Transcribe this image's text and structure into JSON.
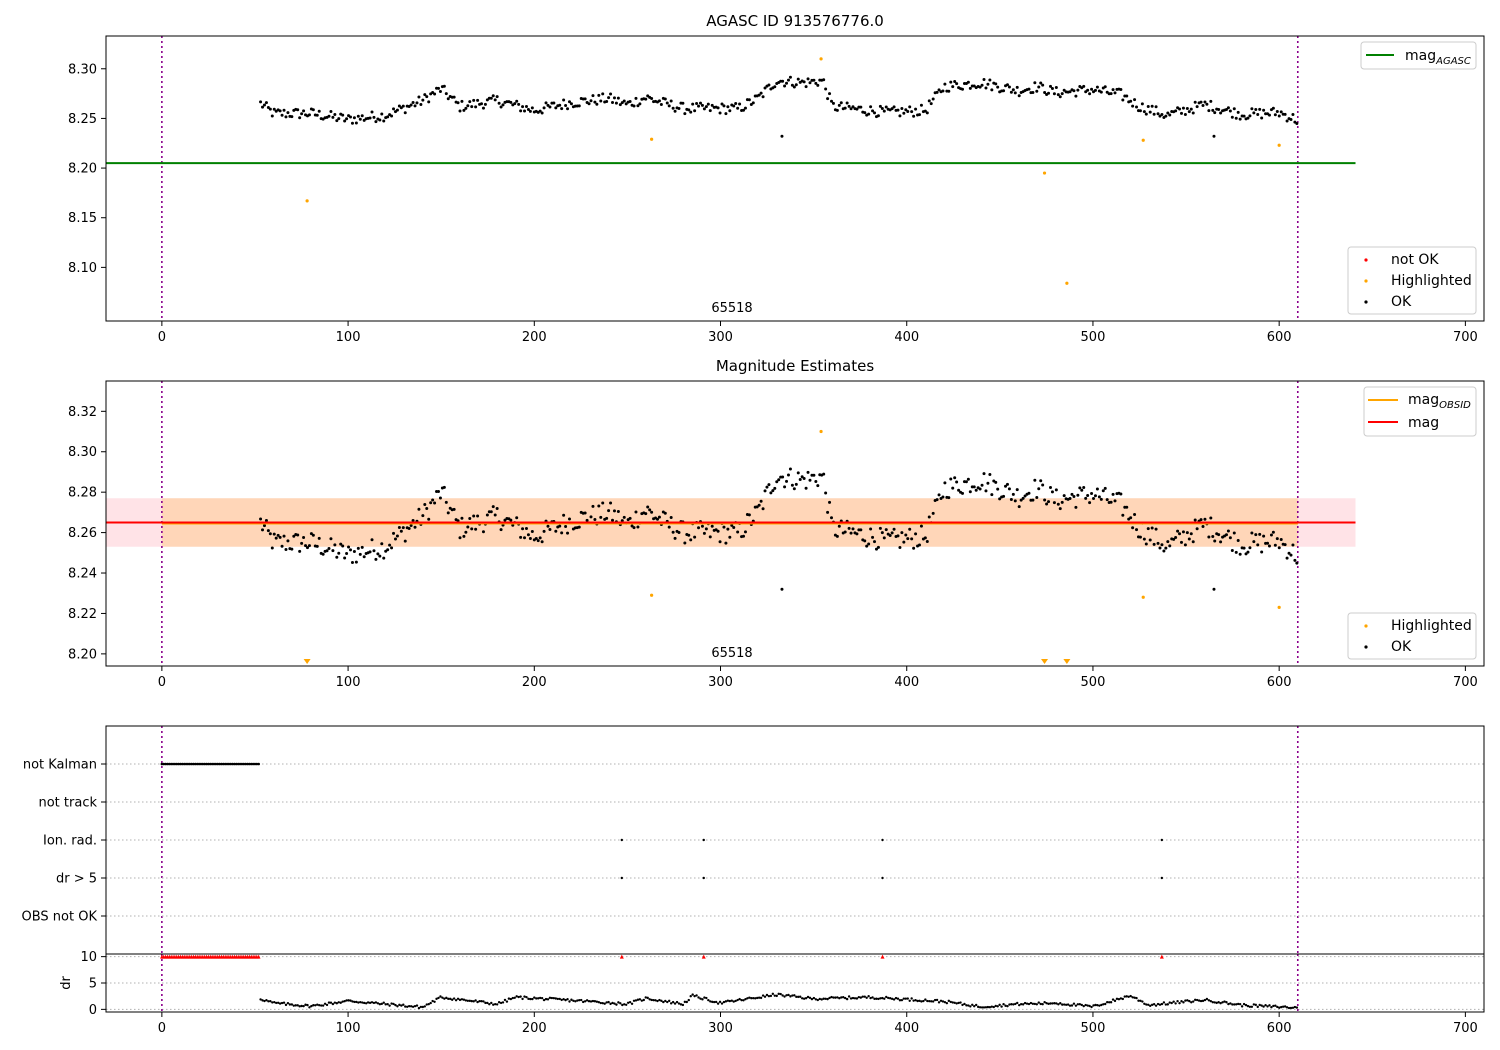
{
  "chart_data": [
    {
      "type": "scatter",
      "title": "AGASC ID 913576776.0",
      "xlim": [
        -30,
        710
      ],
      "ylim": [
        8.046,
        8.333
      ],
      "xticks": [
        0,
        100,
        200,
        300,
        400,
        500,
        600,
        700
      ],
      "yticks": [
        8.1,
        8.15,
        8.2,
        8.25,
        8.3
      ],
      "vlines": [
        0,
        610
      ],
      "annotation": {
        "text": "65518",
        "x": 305,
        "y": 8.061
      },
      "hline": {
        "name": "mag_AGASC",
        "y": 8.205,
        "x_range": [
          -30,
          641
        ],
        "color": "#008000"
      },
      "series": [
        {
          "name": "not OK",
          "color": "#ff0000",
          "points": []
        },
        {
          "name": "Highlighted",
          "color": "#ffa500",
          "points": [
            [
              78,
              8.167
            ],
            [
              263,
              8.229
            ],
            [
              354,
              8.31
            ],
            [
              474,
              8.195
            ],
            [
              486,
              8.084
            ],
            [
              527,
              8.228
            ],
            [
              600,
              8.223
            ]
          ]
        },
        {
          "name": "OK",
          "color": "#000000",
          "x_range": [
            53,
            610
          ],
          "profile": [
            [
              53,
              8.265
            ],
            [
              60,
              8.255
            ],
            [
              80,
              8.255
            ],
            [
              100,
              8.249
            ],
            [
              120,
              8.253
            ],
            [
              140,
              8.268
            ],
            [
              150,
              8.28
            ],
            [
              160,
              8.262
            ],
            [
              180,
              8.268
            ],
            [
              200,
              8.258
            ],
            [
              220,
              8.266
            ],
            [
              240,
              8.27
            ],
            [
              250,
              8.264
            ],
            [
              260,
              8.271
            ],
            [
              270,
              8.265
            ],
            [
              280,
              8.26
            ],
            [
              300,
              8.26
            ],
            [
              310,
              8.26
            ],
            [
              320,
              8.27
            ],
            [
              330,
              8.288
            ],
            [
              345,
              8.286
            ],
            [
              355,
              8.288
            ],
            [
              360,
              8.262
            ],
            [
              390,
              8.256
            ],
            [
              410,
              8.258
            ],
            [
              420,
              8.282
            ],
            [
              440,
              8.286
            ],
            [
              460,
              8.278
            ],
            [
              470,
              8.282
            ],
            [
              480,
              8.276
            ],
            [
              500,
              8.279
            ],
            [
              515,
              8.274
            ],
            [
              525,
              8.262
            ],
            [
              540,
              8.253
            ],
            [
              560,
              8.264
            ],
            [
              580,
              8.254
            ],
            [
              600,
              8.256
            ],
            [
              610,
              8.248
            ]
          ],
          "outliers": [
            [
              333,
              8.232
            ],
            [
              565,
              8.232
            ]
          ]
        }
      ],
      "legend": [
        "mag_AGASC",
        "not OK",
        "Highlighted",
        "OK"
      ]
    },
    {
      "type": "scatter",
      "title": "Magnitude Estimates",
      "xlim": [
        -30,
        710
      ],
      "ylim": [
        8.194,
        8.335
      ],
      "xticks": [
        0,
        100,
        200,
        300,
        400,
        500,
        600,
        700
      ],
      "yticks": [
        8.2,
        8.22,
        8.24,
        8.26,
        8.28,
        8.3,
        8.32
      ],
      "vlines": [
        0,
        610
      ],
      "annotation": {
        "text": "65518",
        "x": 305,
        "y": 8.2
      },
      "hlines": [
        {
          "name": "mag_OBSID",
          "y": 8.2645,
          "x_range": [
            0,
            610
          ],
          "color": "#ffa500"
        },
        {
          "name": "mag",
          "y": 8.265,
          "x_range": [
            -30,
            641
          ],
          "color": "#ff0000"
        }
      ],
      "bands": [
        {
          "y": [
            8.253,
            8.277
          ],
          "x_range": [
            -30,
            641
          ],
          "color": "#ff9aaa",
          "opacity": 0.28
        },
        {
          "y": [
            8.253,
            8.277
          ],
          "x_range": [
            0,
            610
          ],
          "color": "#ffa500",
          "opacity": 0.2
        }
      ],
      "series": [
        {
          "name": "Highlighted",
          "color": "#ffa500",
          "points": [
            [
              263,
              8.229
            ],
            [
              354,
              8.31
            ],
            [
              527,
              8.228
            ],
            [
              600,
              8.223
            ]
          ],
          "below_range": [
            78,
            474,
            486
          ]
        },
        {
          "name": "OK",
          "color": "#000000"
        }
      ],
      "legend": [
        "mag_OBSID",
        "mag",
        "Highlighted",
        "OK"
      ]
    },
    {
      "type": "scatter",
      "xlim": [
        -30,
        710
      ],
      "xticks": [
        0,
        100,
        200,
        300,
        400,
        500,
        600,
        700
      ],
      "vlines": [
        0,
        610
      ],
      "flag_rows": [
        "not Kalman",
        "not track",
        "Ion. rad.",
        "dr > 5",
        "OBS not OK"
      ],
      "flags": {
        "not Kalman": {
          "x_range": [
            0,
            52
          ]
        },
        "not track": {
          "x": []
        },
        "Ion. rad.": {
          "x": [
            247,
            291,
            387,
            537
          ]
        },
        "dr > 5": {
          "x": [
            247,
            291,
            387,
            537
          ]
        },
        "OBS not OK": {
          "x": []
        }
      }
    },
    {
      "type": "scatter",
      "xlim": [
        -30,
        710
      ],
      "ylim": [
        -0.5,
        10.5
      ],
      "ylabel": "dr",
      "xticks": [
        0,
        100,
        200,
        300,
        400,
        500,
        600,
        700
      ],
      "yticks": [
        0,
        5,
        10
      ],
      "vlines": [
        0,
        610
      ],
      "capped": {
        "y": 10,
        "color": "#ff0000",
        "x_range": [
          0,
          52
        ],
        "x": [
          247,
          291,
          387,
          537
        ]
      },
      "profile": [
        [
          53,
          2.0
        ],
        [
          60,
          1.2
        ],
        [
          80,
          0.6
        ],
        [
          100,
          1.6
        ],
        [
          120,
          1.0
        ],
        [
          140,
          0.4
        ],
        [
          150,
          2.3
        ],
        [
          180,
          1.0
        ],
        [
          190,
          2.3
        ],
        [
          230,
          1.5
        ],
        [
          250,
          1.0
        ],
        [
          260,
          2.1
        ],
        [
          280,
          1.0
        ],
        [
          285,
          2.6
        ],
        [
          300,
          1.2
        ],
        [
          330,
          2.8
        ],
        [
          350,
          2.0
        ],
        [
          380,
          2.3
        ],
        [
          420,
          1.5
        ],
        [
          440,
          0.5
        ],
        [
          460,
          1.0
        ],
        [
          480,
          1.2
        ],
        [
          500,
          0.5
        ],
        [
          520,
          2.6
        ],
        [
          530,
          0.8
        ],
        [
          560,
          1.8
        ],
        [
          580,
          0.8
        ],
        [
          610,
          0.3
        ]
      ]
    }
  ]
}
